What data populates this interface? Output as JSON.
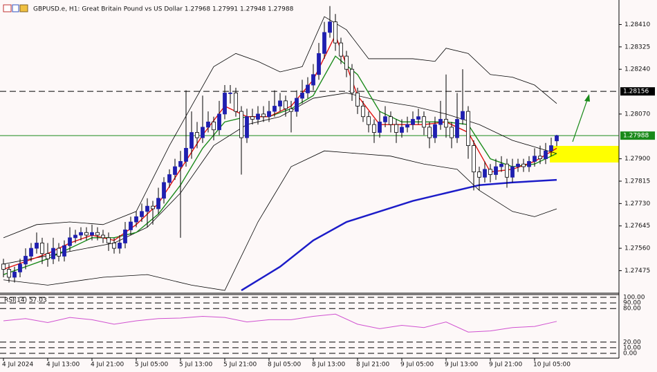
{
  "chart_data": {
    "type": "candlestick",
    "title": "GBPUSD.e, H1:  Great Britain Pound vs US Dollar  1.27968 1.27991 1.27948 1.27988",
    "up_color": "#1f1fb0",
    "down_color": "#ffffff",
    "wick_color": "#000000",
    "categories": [
      "4 Jul 2024",
      null,
      null,
      null,
      null,
      null,
      null,
      null,
      "4 Jul 13:00",
      null,
      null,
      null,
      null,
      null,
      null,
      null,
      "4 Jul 21:00",
      null,
      null,
      null,
      null,
      null,
      null,
      null,
      "5 Jul 05:00",
      null,
      null,
      null,
      null,
      null,
      null,
      null,
      "5 Jul 13:00",
      null,
      null,
      null,
      null,
      null,
      null,
      null,
      "5 Jul 21:00",
      null,
      null,
      null,
      null,
      null,
      null,
      null,
      "8 Jul 05:00",
      null,
      null,
      null,
      null,
      null,
      null,
      null,
      "8 Jul 13:00",
      null,
      null,
      null,
      null,
      null,
      null,
      null,
      "8 Jul 21:00",
      null,
      null,
      null,
      null,
      null,
      null,
      null,
      "9 Jul 05:00",
      null,
      null,
      null,
      null,
      null,
      null,
      null,
      "9 Jul 13:00",
      null,
      null,
      null,
      null,
      null,
      null,
      null,
      "9 Jul 21:00",
      null,
      null,
      null,
      null,
      null,
      null,
      null,
      "10 Jul 05:00",
      null,
      null,
      null,
      null
    ],
    "candles": [
      [
        1.275,
        1.2752,
        1.2745,
        1.2748
      ],
      [
        1.2748,
        1.275,
        1.2743,
        1.2745
      ],
      [
        1.2745,
        1.2749,
        1.2743,
        1.2747
      ],
      [
        1.2747,
        1.2752,
        1.2745,
        1.275
      ],
      [
        1.275,
        1.2756,
        1.2748,
        1.2753
      ],
      [
        1.2753,
        1.2758,
        1.2751,
        1.2756
      ],
      [
        1.2756,
        1.2762,
        1.2754,
        1.2758
      ],
      [
        1.2758,
        1.276,
        1.275,
        1.2754
      ],
      [
        1.2754,
        1.2758,
        1.2749,
        1.2752
      ],
      [
        1.2752,
        1.276,
        1.275,
        1.2756
      ],
      [
        1.2756,
        1.2758,
        1.2751,
        1.2753
      ],
      [
        1.2753,
        1.2759,
        1.2751,
        1.2757
      ],
      [
        1.2757,
        1.2764,
        1.2755,
        1.276
      ],
      [
        1.276,
        1.2763,
        1.2758,
        1.2761
      ],
      [
        1.2761,
        1.2764,
        1.2759,
        1.2762
      ],
      [
        1.2762,
        1.2764,
        1.2759,
        1.2761
      ],
      [
        1.2761,
        1.2765,
        1.2759,
        1.2762
      ],
      [
        1.2762,
        1.2764,
        1.2759,
        1.2761
      ],
      [
        1.2761,
        1.2763,
        1.2758,
        1.276
      ],
      [
        1.276,
        1.2762,
        1.2755,
        1.2758
      ],
      [
        1.2758,
        1.276,
        1.2754,
        1.2756
      ],
      [
        1.2756,
        1.2761,
        1.2754,
        1.2758
      ],
      [
        1.2758,
        1.2766,
        1.2756,
        1.2763
      ],
      [
        1.2763,
        1.2768,
        1.2761,
        1.2766
      ],
      [
        1.2766,
        1.277,
        1.2764,
        1.2768
      ],
      [
        1.2768,
        1.2773,
        1.2766,
        1.277
      ],
      [
        1.277,
        1.2775,
        1.2764,
        1.2772
      ],
      [
        1.2772,
        1.2774,
        1.2765,
        1.2771
      ],
      [
        1.2771,
        1.2779,
        1.2769,
        1.2775
      ],
      [
        1.2775,
        1.2783,
        1.2773,
        1.2781
      ],
      [
        1.2781,
        1.2786,
        1.2779,
        1.2784
      ],
      [
        1.2784,
        1.279,
        1.2782,
        1.2787
      ],
      [
        1.2787,
        1.2793,
        1.276,
        1.2789
      ],
      [
        1.2789,
        1.2816,
        1.2787,
        1.2794
      ],
      [
        1.2794,
        1.2808,
        1.279,
        1.28
      ],
      [
        1.28,
        1.2804,
        1.2794,
        1.2798
      ],
      [
        1.2798,
        1.2814,
        1.2796,
        1.2802
      ],
      [
        1.2802,
        1.2808,
        1.28,
        1.2804
      ],
      [
        1.2804,
        1.2806,
        1.2797,
        1.2801
      ],
      [
        1.2801,
        1.2812,
        1.2799,
        1.2807
      ],
      [
        1.2807,
        1.2818,
        1.2805,
        1.2815
      ],
      [
        1.2815,
        1.2818,
        1.2811,
        1.2815
      ],
      [
        1.2815,
        1.2817,
        1.2806,
        1.2808
      ],
      [
        1.2808,
        1.281,
        1.2784,
        1.2798
      ],
      [
        1.2798,
        1.2809,
        1.2796,
        1.2806
      ],
      [
        1.2806,
        1.2809,
        1.2803,
        1.2805
      ],
      [
        1.2805,
        1.281,
        1.2803,
        1.2807
      ],
      [
        1.2807,
        1.281,
        1.2804,
        1.2806
      ],
      [
        1.2806,
        1.2812,
        1.2804,
        1.2808
      ],
      [
        1.2808,
        1.2816,
        1.2806,
        1.281
      ],
      [
        1.281,
        1.2815,
        1.2808,
        1.2812
      ],
      [
        1.2812,
        1.2814,
        1.2806,
        1.2809
      ],
      [
        1.2809,
        1.2812,
        1.28,
        1.2808
      ],
      [
        1.2808,
        1.2816,
        1.2806,
        1.2813
      ],
      [
        1.2813,
        1.282,
        1.2811,
        1.2815
      ],
      [
        1.2815,
        1.2821,
        1.2813,
        1.2818
      ],
      [
        1.2818,
        1.2826,
        1.2816,
        1.2822
      ],
      [
        1.2822,
        1.2834,
        1.282,
        1.283
      ],
      [
        1.283,
        1.2842,
        1.2828,
        1.2838
      ],
      [
        1.2838,
        1.2848,
        1.2836,
        1.2842
      ],
      [
        1.2842,
        1.2845,
        1.2831,
        1.2834
      ],
      [
        1.2834,
        1.2836,
        1.2826,
        1.2829
      ],
      [
        1.2829,
        1.2831,
        1.2821,
        1.2824
      ],
      [
        1.2824,
        1.2826,
        1.2812,
        1.2815
      ],
      [
        1.2815,
        1.2817,
        1.2807,
        1.281
      ],
      [
        1.281,
        1.2812,
        1.2804,
        1.2806
      ],
      [
        1.2806,
        1.2808,
        1.28,
        1.2803
      ],
      [
        1.2803,
        1.2805,
        1.2796,
        1.28
      ],
      [
        1.28,
        1.2808,
        1.2798,
        1.2804
      ],
      [
        1.2804,
        1.281,
        1.2802,
        1.2806
      ],
      [
        1.2806,
        1.2808,
        1.28,
        1.2803
      ],
      [
        1.2803,
        1.2805,
        1.2796,
        1.28
      ],
      [
        1.28,
        1.2805,
        1.2798,
        1.2802
      ],
      [
        1.2802,
        1.2806,
        1.28,
        1.2803
      ],
      [
        1.2803,
        1.2808,
        1.2801,
        1.2805
      ],
      [
        1.2805,
        1.2809,
        1.2803,
        1.2806
      ],
      [
        1.2806,
        1.2808,
        1.2799,
        1.2802
      ],
      [
        1.2802,
        1.2804,
        1.2794,
        1.2798
      ],
      [
        1.2798,
        1.2806,
        1.2796,
        1.2803
      ],
      [
        1.2803,
        1.2812,
        1.2801,
        1.2805
      ],
      [
        1.2805,
        1.2822,
        1.2798,
        1.2802
      ],
      [
        1.2802,
        1.2804,
        1.2794,
        1.2798
      ],
      [
        1.2798,
        1.2815,
        1.2796,
        1.2805
      ],
      [
        1.2805,
        1.2824,
        1.2803,
        1.2808
      ],
      [
        1.2808,
        1.281,
        1.279,
        1.2795
      ],
      [
        1.2795,
        1.2797,
        1.2778,
        1.2785
      ],
      [
        1.2785,
        1.2787,
        1.2778,
        1.2783
      ],
      [
        1.2783,
        1.2789,
        1.2781,
        1.2786
      ],
      [
        1.2786,
        1.2788,
        1.2781,
        1.2784
      ],
      [
        1.2784,
        1.279,
        1.2782,
        1.2787
      ],
      [
        1.2787,
        1.2791,
        1.2785,
        1.2788
      ],
      [
        1.2788,
        1.279,
        1.2779,
        1.2783
      ],
      [
        1.2783,
        1.279,
        1.2781,
        1.2787
      ],
      [
        1.2787,
        1.279,
        1.2785,
        1.2788
      ],
      [
        1.2788,
        1.279,
        1.2785,
        1.2787
      ],
      [
        1.2787,
        1.2791,
        1.2785,
        1.2789
      ],
      [
        1.2789,
        1.2794,
        1.2787,
        1.2791
      ],
      [
        1.2791,
        1.2795,
        1.2788,
        1.279
      ],
      [
        1.279,
        1.2796,
        1.2788,
        1.2793
      ],
      [
        1.2793,
        1.2798,
        1.2791,
        1.2795
      ],
      [
        1.27968,
        1.27991,
        1.27948,
        1.27988
      ]
    ],
    "overlays": [
      {
        "color": "#000000",
        "x": [
          0,
          6,
          12,
          18,
          24,
          30,
          34,
          38,
          42,
          46,
          50,
          54,
          58,
          62,
          66,
          70,
          74,
          78,
          80,
          84,
          88,
          92,
          96,
          100
        ],
        "values": [
          1.276,
          1.2765,
          1.2766,
          1.2765,
          1.277,
          1.2795,
          1.281,
          1.2825,
          1.283,
          1.2827,
          1.2823,
          1.2825,
          1.2844,
          1.2839,
          1.2828,
          1.2828,
          1.2828,
          1.2827,
          1.2832,
          1.283,
          1.2822,
          1.2821,
          1.2818,
          1.2811
        ]
      },
      {
        "color": "#000000",
        "x": [
          0,
          10,
          20,
          26,
          32,
          38,
          44,
          50,
          56,
          62,
          68,
          74,
          80,
          86,
          92,
          100
        ],
        "values": [
          1.275,
          1.2754,
          1.2758,
          1.2764,
          1.2777,
          1.2795,
          1.2803,
          1.2806,
          1.2813,
          1.2815,
          1.2812,
          1.281,
          1.2807,
          1.2803,
          1.2797,
          1.2792
        ]
      },
      {
        "color": "#000000",
        "x": [
          0,
          8,
          18,
          26,
          34,
          40,
          46,
          52,
          58,
          64,
          70,
          76,
          82,
          86,
          92,
          96,
          100
        ],
        "values": [
          1.2744,
          1.2742,
          1.2745,
          1.2746,
          1.2742,
          1.274,
          1.2766,
          1.2787,
          1.2793,
          1.2792,
          1.2791,
          1.2788,
          1.2786,
          1.2778,
          1.277,
          1.2768,
          1.2771
        ]
      },
      {
        "color": "#1c1cc8",
        "style": "bold",
        "x": [
          43,
          50,
          56,
          62,
          68,
          74,
          80,
          86,
          92,
          100
        ],
        "values": [
          1.274,
          1.2749,
          1.2759,
          1.2766,
          1.277,
          1.2774,
          1.2777,
          1.278,
          1.2781,
          1.2782
        ]
      },
      {
        "color": "#1a8a1a",
        "x": [
          0,
          4,
          8,
          12,
          16,
          20,
          24,
          28,
          32,
          36,
          40,
          44,
          48,
          52,
          56,
          60,
          64,
          68,
          72,
          76,
          80,
          84,
          88,
          92,
          96,
          100
        ],
        "values": [
          1.2746,
          1.2749,
          1.2752,
          1.2756,
          1.276,
          1.276,
          1.2762,
          1.2769,
          1.278,
          1.2794,
          1.2804,
          1.2806,
          1.2806,
          1.2809,
          1.2814,
          1.2829,
          1.2822,
          1.2808,
          1.2804,
          1.2804,
          1.2804,
          1.2803,
          1.279,
          1.2787,
          1.2788,
          1.2792
        ]
      },
      {
        "color": "#e01010",
        "x": [
          0,
          4,
          8,
          12,
          16,
          20,
          24,
          28,
          32,
          36,
          40,
          44,
          48,
          52,
          56,
          60,
          64,
          68,
          72,
          76,
          80,
          84,
          88,
          92,
          96,
          100
        ],
        "values": [
          1.2748,
          1.2751,
          1.2754,
          1.2758,
          1.2761,
          1.2759,
          1.2765,
          1.2773,
          1.2786,
          1.2799,
          1.281,
          1.2806,
          1.2806,
          1.281,
          1.282,
          1.2837,
          1.2814,
          1.2803,
          1.2803,
          1.2803,
          1.2804,
          1.28,
          1.2785,
          1.2786,
          1.2789,
          1.2794
        ]
      }
    ],
    "ylim": [
      1.274,
      1.2849
    ],
    "yticks": [
      {
        "value": 1.2841,
        "label": "1.28410"
      },
      1.28325,
      {
        "value": 1.2824,
        "label": "1.28240"
      },
      {
        "value": 1.2807,
        "label": "1.28070"
      },
      {
        "value": 1.279,
        "label": "1.27900"
      },
      1.27815,
      {
        "value": 1.2773,
        "label": "1.27730"
      },
      1.27645,
      {
        "value": 1.2756,
        "label": "1.27560"
      },
      1.27475
    ],
    "levels": [
      {
        "value": 1.28156,
        "color": "#000000",
        "style": "dashed"
      },
      {
        "value": 1.27988,
        "color": "#1a8a1a",
        "style": "solid"
      }
    ],
    "rsi": {
      "title": "RSI(14) 57.03",
      "color": "#d050d0",
      "ylim": [
        0,
        100
      ],
      "yticks": [
        {
          "value": 100,
          "label": "100.00"
        },
        {
          "value": 90,
          "label": "90.00"
        },
        {
          "value": 80,
          "label": "80.00"
        },
        {
          "value": 20,
          "label": "20.00"
        },
        {
          "value": 10,
          "label": "10.00"
        },
        {
          "value": 0,
          "label": "0.00"
        }
      ],
      "x": [
        0,
        4,
        8,
        12,
        16,
        20,
        24,
        28,
        32,
        36,
        40,
        44,
        48,
        52,
        56,
        60,
        64,
        68,
        72,
        76,
        80,
        84,
        88,
        92,
        96,
        100
      ],
      "values": [
        58,
        62,
        55,
        64,
        60,
        52,
        58,
        62,
        63,
        66,
        64,
        56,
        60,
        60,
        66,
        70,
        52,
        44,
        50,
        46,
        56,
        38,
        40,
        46,
        48,
        57.03
      ]
    }
  }
}
